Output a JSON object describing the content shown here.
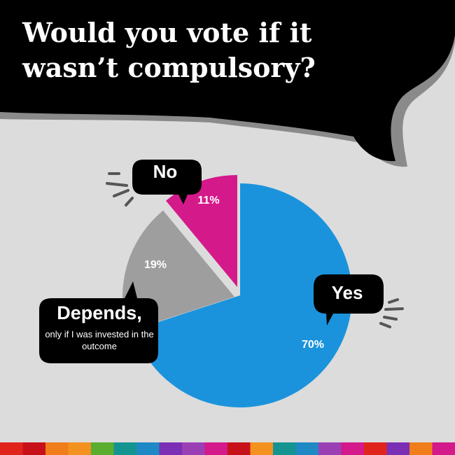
{
  "title": "Would you vote if it wasn’t compulsory?",
  "chart_data": {
    "type": "pie",
    "title": "Would you vote if it wasn’t compulsory?",
    "slices": [
      {
        "name": "Yes",
        "value": 70,
        "label": "70%",
        "color": "#1b93dc"
      },
      {
        "name": "Depends,",
        "subtitle": "only if I was invested in the outcome",
        "value": 19,
        "label": "19%",
        "color": "#9e9e9e"
      },
      {
        "name": "No",
        "value": 11,
        "label": "11%",
        "color": "#d4198a"
      }
    ]
  },
  "colors": {
    "background": "#dcdcdc",
    "bubble": "#000000",
    "bubble_shadow": "#8a8a8a",
    "footer_stripes": [
      "#e0241b",
      "#c8101a",
      "#f07d1a",
      "#f3921f",
      "#5aad2f",
      "#149491",
      "#1f89c6",
      "#7a2fb4",
      "#9b3fb5",
      "#d4198a"
    ]
  }
}
